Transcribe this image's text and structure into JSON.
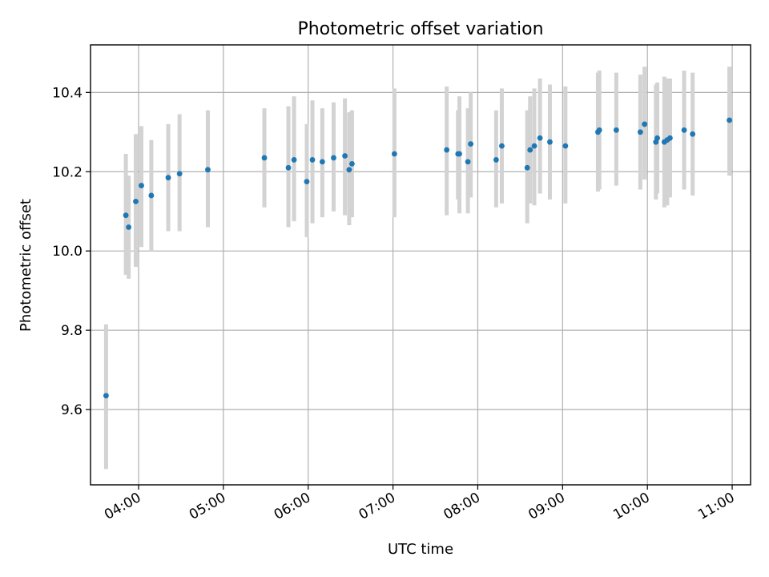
{
  "chart_data": {
    "type": "scatter",
    "title": "Photometric offset variation",
    "xlabel": "UTC time",
    "ylabel": "Photometric offset",
    "x_tick_labels": [
      "04:00",
      "05:00",
      "06:00",
      "07:00",
      "08:00",
      "09:00",
      "10:00",
      "11:00"
    ],
    "y_tick_labels": [
      "9.6",
      "9.8",
      "10.0",
      "10.2",
      "10.4"
    ],
    "x_ticks": [
      "04:00",
      "05:00",
      "06:00",
      "07:00",
      "08:00",
      "09:00",
      "10:00",
      "11:00"
    ],
    "y_ticks": [
      9.6,
      9.8,
      10.0,
      10.2,
      10.4
    ],
    "xlim": [
      "03:26",
      "11:13"
    ],
    "ylim": [
      9.41,
      10.52
    ],
    "grid": true,
    "colors": {
      "point": "#1f77b4",
      "errorbar": "#d3d3d3",
      "grid": "#b0b0b0"
    },
    "series": [
      {
        "x": [
          "03:37",
          "03:51",
          "03:53",
          "03:58",
          "04:02",
          "04:09",
          "04:21",
          "04:29",
          "04:49",
          "05:29",
          "05:46",
          "05:50",
          "05:59",
          "06:03",
          "06:10",
          "06:18",
          "06:26",
          "06:29",
          "06:31",
          "07:01",
          "07:38",
          "07:46",
          "07:47",
          "07:53",
          "07:55",
          "08:13",
          "08:17",
          "08:35",
          "08:37",
          "08:40",
          "08:44",
          "08:51",
          "09:02",
          "09:25",
          "09:26",
          "09:38",
          "09:55",
          "09:58",
          "10:06",
          "10:07",
          "10:12",
          "10:14",
          "10:16",
          "10:26",
          "10:32",
          "10:58"
        ],
        "y": [
          9.635,
          10.09,
          10.06,
          10.125,
          10.165,
          10.14,
          10.185,
          10.195,
          10.205,
          10.235,
          10.21,
          10.23,
          10.175,
          10.23,
          10.225,
          10.235,
          10.24,
          10.205,
          10.22,
          10.245,
          10.255,
          10.245,
          10.245,
          10.225,
          10.27,
          10.23,
          10.265,
          10.21,
          10.255,
          10.265,
          10.285,
          10.275,
          10.265,
          10.3,
          10.305,
          10.305,
          10.3,
          10.32,
          10.275,
          10.285,
          10.275,
          10.28,
          10.285,
          10.305,
          10.295,
          10.33
        ],
        "yerr_low": [
          9.45,
          9.94,
          9.93,
          9.96,
          10.01,
          10.0,
          10.05,
          10.05,
          10.06,
          10.11,
          10.06,
          10.075,
          10.035,
          10.07,
          10.085,
          10.1,
          10.09,
          10.065,
          10.085,
          10.085,
          10.09,
          10.13,
          10.095,
          10.095,
          10.135,
          10.11,
          10.12,
          10.07,
          10.12,
          10.115,
          10.145,
          10.13,
          10.12,
          10.15,
          10.155,
          10.165,
          10.155,
          10.18,
          10.13,
          10.145,
          10.11,
          10.115,
          10.135,
          10.155,
          10.14,
          10.19
        ],
        "yerr_high": [
          9.815,
          10.245,
          10.19,
          10.295,
          10.315,
          10.28,
          10.32,
          10.345,
          10.355,
          10.36,
          10.365,
          10.39,
          10.32,
          10.38,
          10.36,
          10.375,
          10.385,
          10.35,
          10.355,
          10.41,
          10.415,
          10.355,
          10.39,
          10.36,
          10.4,
          10.355,
          10.41,
          10.355,
          10.39,
          10.41,
          10.435,
          10.42,
          10.415,
          10.45,
          10.455,
          10.45,
          10.445,
          10.465,
          10.42,
          10.425,
          10.44,
          10.435,
          10.435,
          10.455,
          10.45,
          10.465
        ]
      }
    ]
  }
}
